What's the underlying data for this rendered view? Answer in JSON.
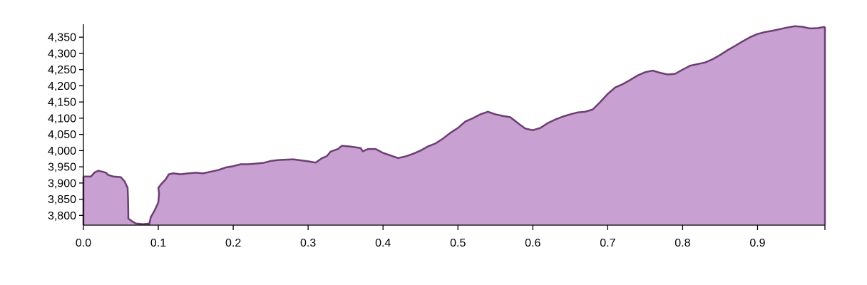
{
  "chart_data": {
    "type": "area",
    "title": "",
    "xlabel": "",
    "ylabel": "",
    "xlim": [
      0,
      0.99
    ],
    "ylim": [
      3770,
      4390
    ],
    "grid": false,
    "legend": "none",
    "colors": {
      "fill": "#c8a0d2",
      "stroke": "#6b3f73"
    },
    "x_ticks": [
      0.0,
      0.1,
      0.2,
      0.3,
      0.4,
      0.5,
      0.6,
      0.7,
      0.8,
      0.9
    ],
    "x_tick_labels": [
      "0.0",
      "0.1",
      "0.2",
      "0.3",
      "0.4",
      "0.5",
      "0.6",
      "0.7",
      "0.8",
      "0.9"
    ],
    "y_ticks": [
      3800,
      3850,
      3900,
      3950,
      4000,
      4050,
      4100,
      4150,
      4200,
      4250,
      4300,
      4350
    ],
    "y_tick_labels": [
      "3,800",
      "3,850",
      "3,900",
      "3,950",
      "4,000",
      "4,050",
      "4,100",
      "4,150",
      "4,200",
      "4,250",
      "4,300",
      "4,350"
    ],
    "segments": [
      [
        [
          0.0,
          3920
        ],
        [
          0.01,
          3920
        ],
        [
          0.015,
          3933
        ],
        [
          0.02,
          3938
        ],
        [
          0.025,
          3935
        ],
        [
          0.03,
          3932
        ],
        [
          0.033,
          3925
        ],
        [
          0.04,
          3920
        ],
        [
          0.05,
          3918
        ],
        [
          0.055,
          3905
        ],
        [
          0.059,
          3885
        ],
        [
          0.0595,
          3855
        ],
        [
          0.0598,
          3820
        ],
        [
          0.06,
          3790
        ],
        [
          0.065,
          3782
        ],
        [
          0.07,
          3775
        ],
        [
          0.08,
          3773
        ],
        [
          0.088,
          3775
        ]
      ],
      [
        [
          0.088,
          3775
        ],
        [
          0.09,
          3795
        ],
        [
          0.095,
          3815
        ],
        [
          0.1,
          3840
        ],
        [
          0.101,
          3868
        ],
        [
          0.1,
          3885
        ],
        [
          0.104,
          3897
        ],
        [
          0.11,
          3912
        ],
        [
          0.114,
          3927
        ],
        [
          0.12,
          3930
        ],
        [
          0.13,
          3927
        ],
        [
          0.14,
          3930
        ],
        [
          0.15,
          3932
        ],
        [
          0.16,
          3930
        ],
        [
          0.17,
          3935
        ],
        [
          0.18,
          3940
        ],
        [
          0.19,
          3948
        ],
        [
          0.2,
          3952
        ],
        [
          0.21,
          3958
        ],
        [
          0.22,
          3958
        ],
        [
          0.23,
          3960
        ],
        [
          0.24,
          3962
        ],
        [
          0.25,
          3968
        ],
        [
          0.26,
          3971
        ],
        [
          0.27,
          3972
        ],
        [
          0.28,
          3973
        ],
        [
          0.29,
          3970
        ],
        [
          0.3,
          3967
        ],
        [
          0.31,
          3963
        ],
        [
          0.318,
          3976
        ],
        [
          0.325,
          3983
        ],
        [
          0.33,
          3997
        ],
        [
          0.34,
          4005
        ],
        [
          0.345,
          4015
        ],
        [
          0.355,
          4013
        ],
        [
          0.37,
          4008
        ],
        [
          0.373,
          3998
        ],
        [
          0.38,
          4005
        ],
        [
          0.39,
          4005
        ],
        [
          0.4,
          3993
        ],
        [
          0.41,
          3985
        ],
        [
          0.42,
          3977
        ],
        [
          0.43,
          3982
        ],
        [
          0.44,
          3990
        ],
        [
          0.45,
          4000
        ],
        [
          0.46,
          4013
        ],
        [
          0.47,
          4022
        ],
        [
          0.48,
          4037
        ],
        [
          0.49,
          4055
        ],
        [
          0.5,
          4070
        ],
        [
          0.51,
          4090
        ],
        [
          0.52,
          4100
        ],
        [
          0.53,
          4112
        ],
        [
          0.54,
          4120
        ],
        [
          0.55,
          4112
        ],
        [
          0.56,
          4107
        ],
        [
          0.57,
          4103
        ],
        [
          0.58,
          4085
        ],
        [
          0.59,
          4068
        ],
        [
          0.6,
          4063
        ],
        [
          0.61,
          4070
        ],
        [
          0.62,
          4085
        ],
        [
          0.63,
          4096
        ],
        [
          0.64,
          4105
        ],
        [
          0.65,
          4112
        ],
        [
          0.66,
          4118
        ],
        [
          0.67,
          4120
        ],
        [
          0.68,
          4127
        ],
        [
          0.69,
          4150
        ],
        [
          0.7,
          4175
        ],
        [
          0.71,
          4195
        ],
        [
          0.72,
          4205
        ],
        [
          0.73,
          4218
        ],
        [
          0.74,
          4232
        ],
        [
          0.75,
          4242
        ],
        [
          0.76,
          4247
        ],
        [
          0.77,
          4240
        ],
        [
          0.78,
          4235
        ],
        [
          0.79,
          4237
        ],
        [
          0.8,
          4250
        ],
        [
          0.81,
          4262
        ],
        [
          0.82,
          4267
        ],
        [
          0.83,
          4272
        ],
        [
          0.84,
          4282
        ],
        [
          0.85,
          4295
        ],
        [
          0.86,
          4310
        ],
        [
          0.87,
          4323
        ],
        [
          0.88,
          4337
        ],
        [
          0.89,
          4350
        ],
        [
          0.9,
          4360
        ],
        [
          0.91,
          4366
        ],
        [
          0.92,
          4370
        ],
        [
          0.93,
          4375
        ],
        [
          0.94,
          4380
        ],
        [
          0.95,
          4384
        ],
        [
          0.96,
          4382
        ],
        [
          0.97,
          4377
        ],
        [
          0.98,
          4378
        ],
        [
          0.99,
          4382
        ]
      ]
    ]
  }
}
